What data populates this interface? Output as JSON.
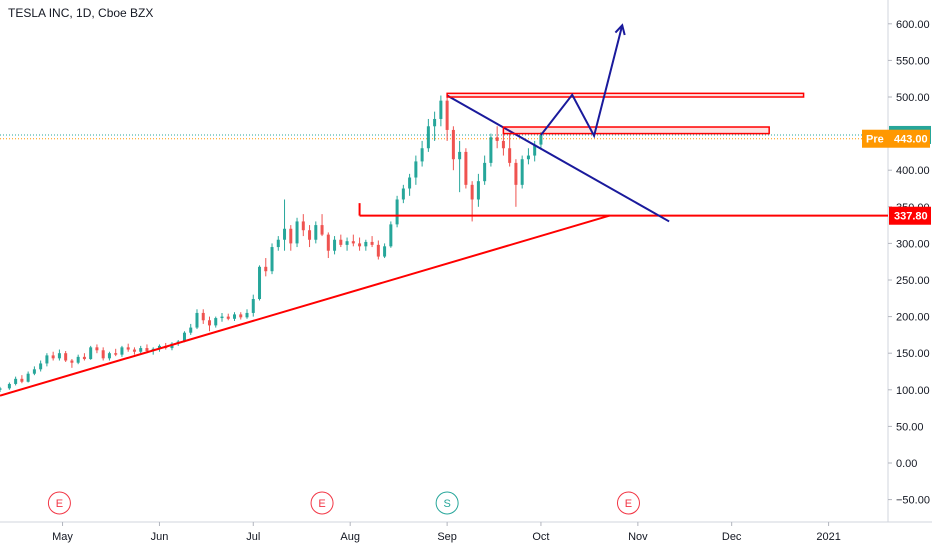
{
  "chart_data": {
    "type": "candlestick",
    "title": "TESLA INC, 1D, Cboe BZX",
    "y_ticks": [
      600,
      550,
      500,
      450,
      400,
      350,
      300,
      250,
      200,
      150,
      100,
      50,
      0,
      -50
    ],
    "y_tick_labels": [
      "600.00",
      "550.00",
      "500.00",
      "450.00",
      "400.00",
      "350.00",
      "300.00",
      "250.00",
      "200.00",
      "150.00",
      "100.00",
      "50.00",
      "0.00",
      "−50.00"
    ],
    "ylim": [
      -70,
      630
    ],
    "x_ticks": [
      {
        "label": "May",
        "day": 121
      },
      {
        "label": "Jun",
        "day": 152
      },
      {
        "label": "Jul",
        "day": 182
      },
      {
        "label": "Aug",
        "day": 213
      },
      {
        "label": "Sep",
        "day": 244
      },
      {
        "label": "Oct",
        "day": 274
      },
      {
        "label": "Nov",
        "day": 305
      },
      {
        "label": "Dec",
        "day": 335
      },
      {
        "label": "2021",
        "day": 366
      }
    ],
    "xlim": [
      101,
      385
    ],
    "last_price": {
      "value": 448.16,
      "label": "448.16",
      "color": "#26a69a"
    },
    "pre_market": {
      "prefix": "Pre",
      "value": 443.0,
      "label": "443.00",
      "color": "#ff9800"
    },
    "support_level": {
      "value": 337.8,
      "label": "337.80",
      "color": "#ff0000"
    },
    "events": [
      {
        "letter": "E",
        "day": 120,
        "color": "#f23645"
      },
      {
        "letter": "E",
        "day": 204,
        "color": "#f23645"
      },
      {
        "letter": "S",
        "day": 244,
        "color": "#26a69a"
      },
      {
        "letter": "E",
        "day": 302,
        "color": "#f23645"
      }
    ],
    "candles": [
      [
        101,
        100,
        104,
        97,
        102
      ],
      [
        104,
        102,
        110,
        100,
        108
      ],
      [
        106,
        108,
        118,
        106,
        115
      ],
      [
        108,
        115,
        120,
        109,
        111
      ],
      [
        110,
        111,
        125,
        110,
        122
      ],
      [
        112,
        122,
        132,
        120,
        128
      ],
      [
        114,
        128,
        140,
        125,
        136
      ],
      [
        116,
        136,
        150,
        132,
        147
      ],
      [
        118,
        147,
        152,
        140,
        143
      ],
      [
        120,
        143,
        155,
        140,
        150
      ],
      [
        122,
        150,
        153,
        138,
        140
      ],
      [
        124,
        140,
        142,
        130,
        137
      ],
      [
        126,
        137,
        148,
        135,
        145
      ],
      [
        128,
        145,
        150,
        140,
        142
      ],
      [
        130,
        142,
        160,
        141,
        158
      ],
      [
        132,
        158,
        162,
        150,
        154
      ],
      [
        134,
        154,
        158,
        140,
        143
      ],
      [
        136,
        143,
        152,
        140,
        150
      ],
      [
        138,
        150,
        156,
        146,
        148
      ],
      [
        140,
        148,
        160,
        145,
        158
      ],
      [
        142,
        158,
        163,
        152,
        155
      ],
      [
        144,
        155,
        158,
        148,
        152
      ],
      [
        146,
        152,
        160,
        150,
        157
      ],
      [
        148,
        157,
        162,
        150,
        153
      ],
      [
        150,
        153,
        158,
        148,
        156
      ],
      [
        152,
        156,
        162,
        152,
        160
      ],
      [
        154,
        160,
        164,
        155,
        157
      ],
      [
        156,
        157,
        165,
        154,
        163
      ],
      [
        158,
        163,
        168,
        160,
        166
      ],
      [
        160,
        166,
        180,
        165,
        178
      ],
      [
        162,
        178,
        190,
        175,
        185
      ],
      [
        164,
        185,
        210,
        183,
        205
      ],
      [
        166,
        205,
        210,
        190,
        195
      ],
      [
        168,
        195,
        200,
        180,
        188
      ],
      [
        170,
        188,
        200,
        185,
        198
      ],
      [
        172,
        198,
        205,
        193,
        200
      ],
      [
        174,
        200,
        204,
        195,
        197
      ],
      [
        176,
        197,
        206,
        194,
        203
      ],
      [
        178,
        203,
        206,
        196,
        199
      ],
      [
        180,
        199,
        210,
        197,
        205
      ],
      [
        182,
        205,
        230,
        200,
        224
      ],
      [
        184,
        224,
        270,
        222,
        268
      ],
      [
        186,
        268,
        280,
        255,
        262
      ],
      [
        188,
        262,
        300,
        258,
        295
      ],
      [
        190,
        295,
        310,
        290,
        305
      ],
      [
        192,
        305,
        360,
        290,
        320
      ],
      [
        194,
        320,
        325,
        290,
        300
      ],
      [
        196,
        300,
        335,
        295,
        330
      ],
      [
        198,
        330,
        340,
        310,
        318
      ],
      [
        200,
        318,
        325,
        295,
        305
      ],
      [
        202,
        305,
        330,
        300,
        325
      ],
      [
        204,
        325,
        340,
        310,
        312
      ],
      [
        206,
        312,
        315,
        280,
        290
      ],
      [
        208,
        290,
        310,
        285,
        305
      ],
      [
        210,
        305,
        312,
        295,
        298
      ],
      [
        212,
        298,
        308,
        290,
        303
      ],
      [
        214,
        303,
        312,
        296,
        300
      ],
      [
        216,
        300,
        308,
        290,
        296
      ],
      [
        218,
        296,
        305,
        290,
        302
      ],
      [
        220,
        302,
        310,
        295,
        298
      ],
      [
        222,
        298,
        304,
        278,
        282
      ],
      [
        224,
        282,
        300,
        280,
        296
      ],
      [
        226,
        296,
        330,
        294,
        326
      ],
      [
        228,
        326,
        365,
        322,
        360
      ],
      [
        230,
        360,
        380,
        355,
        375
      ],
      [
        232,
        375,
        395,
        365,
        390
      ],
      [
        234,
        390,
        420,
        380,
        412
      ],
      [
        236,
        412,
        440,
        405,
        430
      ],
      [
        238,
        430,
        470,
        425,
        460
      ],
      [
        240,
        460,
        480,
        440,
        470
      ],
      [
        242,
        470,
        502,
        460,
        495
      ],
      [
        244,
        495,
        502,
        440,
        455
      ],
      [
        246,
        455,
        460,
        400,
        415
      ],
      [
        248,
        415,
        440,
        370,
        425
      ],
      [
        250,
        425,
        430,
        375,
        380
      ],
      [
        252,
        380,
        385,
        330,
        360
      ],
      [
        254,
        360,
        395,
        350,
        385
      ],
      [
        256,
        385,
        420,
        380,
        410
      ],
      [
        258,
        410,
        450,
        405,
        445
      ],
      [
        260,
        445,
        460,
        430,
        440
      ],
      [
        262,
        440,
        455,
        420,
        430
      ],
      [
        264,
        430,
        450,
        405,
        410
      ],
      [
        266,
        410,
        415,
        350,
        380
      ],
      [
        268,
        380,
        420,
        375,
        415
      ],
      [
        270,
        415,
        430,
        408,
        420
      ],
      [
        272,
        420,
        440,
        412,
        435
      ],
      [
        274,
        435,
        452,
        428,
        448
      ]
    ],
    "drawings": [
      {
        "type": "line",
        "color": "#ff0000",
        "points": [
          [
            101,
            92
          ],
          [
            296,
            338
          ]
        ]
      },
      {
        "type": "line",
        "color": "#ff0000",
        "points": [
          [
            216,
            338
          ],
          [
            385,
            338
          ]
        ]
      },
      {
        "type": "line",
        "color": "#ff0000",
        "points": [
          [
            216,
            338
          ],
          [
            216,
            355
          ]
        ]
      },
      {
        "type": "line",
        "color": "#1a1a9c",
        "points": [
          [
            244,
            502
          ],
          [
            315,
            330
          ]
        ]
      },
      {
        "type": "rect",
        "color": "#ff0000",
        "day1": 244,
        "day2": 358,
        "y1": 500,
        "y2": 505
      },
      {
        "type": "rect",
        "color": "#ff0000",
        "day1": 262,
        "day2": 347,
        "y1": 450,
        "y2": 459
      },
      {
        "type": "line",
        "color": "#1a1a9c",
        "points": [
          [
            274,
            448
          ],
          [
            284,
            503
          ],
          [
            291,
            447
          ],
          [
            300,
            598
          ]
        ]
      }
    ]
  }
}
